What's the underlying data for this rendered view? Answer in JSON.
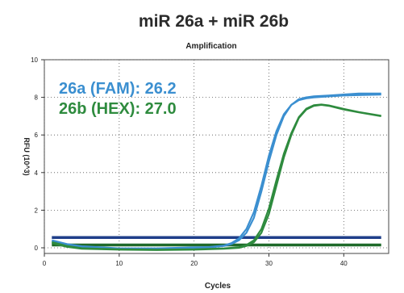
{
  "chart_data": {
    "type": "line",
    "header_title": "miR 26a  +  miR 26b",
    "title": "Amplification",
    "xlabel": "Cycles",
    "ylabel": "RFU (10^3)",
    "xlim": [
      0,
      46
    ],
    "ylim": [
      -0.3,
      10
    ],
    "x_ticks": [
      0,
      10,
      20,
      30,
      40
    ],
    "y_ticks": [
      0,
      2,
      4,
      6,
      8,
      10
    ],
    "grid": "dotted",
    "annotations": [
      {
        "text": "26a (FAM): 26.2",
        "color": "#3b8fd0"
      },
      {
        "text": "26b (HEX): 27.0",
        "color": "#2e8b3e"
      }
    ],
    "thresholds": [
      {
        "color": "#1f3f8a",
        "value": 0.55
      },
      {
        "color": "#1f6a2a",
        "value": 0.15
      }
    ],
    "series": [
      {
        "color": "#3b8fd0",
        "x": [
          1,
          3,
          5,
          10,
          15,
          20,
          22,
          24,
          25,
          26,
          27,
          28,
          29,
          30,
          31,
          32,
          33,
          34,
          35,
          36,
          38,
          40,
          42,
          45
        ],
        "y": [
          0.35,
          0.15,
          0.05,
          -0.05,
          -0.05,
          0.0,
          0.02,
          0.1,
          0.2,
          0.4,
          0.8,
          1.6,
          3.0,
          4.6,
          6.0,
          7.0,
          7.6,
          7.9,
          8.0,
          8.05,
          8.1,
          8.15,
          8.2,
          8.2
        ]
      },
      {
        "color": "#3b8fd0",
        "x": [
          1,
          3,
          5,
          10,
          15,
          20,
          22,
          24,
          25,
          26,
          27,
          28,
          29,
          30,
          31,
          32,
          33,
          34,
          35,
          36,
          38,
          40,
          42,
          45
        ],
        "y": [
          0.4,
          0.2,
          0.08,
          -0.03,
          -0.03,
          0.02,
          0.04,
          0.12,
          0.25,
          0.5,
          1.0,
          1.9,
          3.3,
          4.9,
          6.2,
          7.1,
          7.6,
          7.85,
          7.95,
          8.0,
          8.05,
          8.1,
          8.12,
          8.15
        ]
      },
      {
        "color": "#2e8b3e",
        "x": [
          1,
          3,
          5,
          10,
          15,
          20,
          24,
          26,
          27,
          28,
          29,
          30,
          31,
          32,
          33,
          34,
          35,
          36,
          37,
          38,
          40,
          42,
          45
        ],
        "y": [
          0.25,
          0.05,
          -0.05,
          -0.1,
          -0.12,
          -0.1,
          -0.05,
          0.0,
          0.1,
          0.3,
          0.8,
          1.8,
          3.3,
          4.8,
          6.0,
          6.9,
          7.35,
          7.55,
          7.6,
          7.55,
          7.35,
          7.2,
          7.0
        ]
      },
      {
        "color": "#2e8b3e",
        "x": [
          1,
          3,
          5,
          10,
          15,
          20,
          24,
          26,
          27,
          28,
          29,
          30,
          31,
          32,
          33,
          34,
          35,
          36,
          37,
          38,
          40,
          42,
          45
        ],
        "y": [
          0.3,
          0.1,
          -0.02,
          -0.08,
          -0.1,
          -0.08,
          -0.03,
          0.03,
          0.15,
          0.4,
          1.0,
          2.1,
          3.6,
          5.0,
          6.1,
          6.95,
          7.4,
          7.58,
          7.62,
          7.57,
          7.38,
          7.22,
          7.02
        ]
      }
    ]
  }
}
